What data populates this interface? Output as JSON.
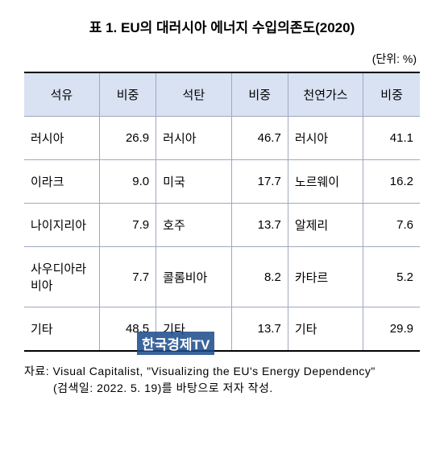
{
  "title": "표 1. EU의 대러시아 에너지 수입의존도(2020)",
  "unit": "(단위: %)",
  "table": {
    "columns": [
      "석유",
      "비중",
      "석탄",
      "비중",
      "천연가스",
      "비중"
    ],
    "rows": [
      [
        "러시아",
        "26.9",
        "러시아",
        "46.7",
        "러시아",
        "41.1"
      ],
      [
        "이라크",
        "9.0",
        "미국",
        "17.7",
        "노르웨이",
        "16.2"
      ],
      [
        "나이지리아",
        "7.9",
        "호주",
        "13.7",
        "알제리",
        "7.6"
      ],
      [
        "사우디아라비아",
        "7.7",
        "콜롬비아",
        "8.2",
        "카타르",
        "5.2"
      ],
      [
        "기타",
        "48.5",
        "기타",
        "13.7",
        "기타",
        "29.9"
      ]
    ],
    "header_bg": "#d9e2f3",
    "border_color": "#a0a8c0",
    "outer_border_color": "#000000",
    "fontsize": 15
  },
  "source": {
    "line1": "자료: Visual Capitalist, \"Visualizing the EU's Energy Dependency\"",
    "line2": "(검색일: 2022. 5. 19)를 바탕으로 저자 작성."
  },
  "watermark": "한국경제TV"
}
